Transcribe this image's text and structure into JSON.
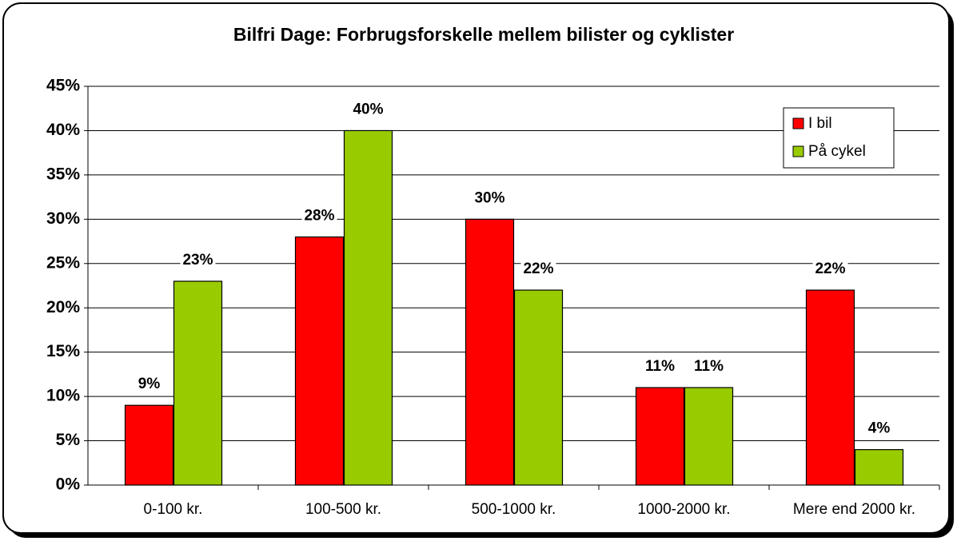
{
  "chart_data": {
    "type": "bar",
    "title": "Bilfri Dage: Forbrugsforskelle mellem bilister og cyklister",
    "categories": [
      "0-100 kr.",
      "100-500 kr.",
      "500-1000 kr.",
      "1000-2000 kr.",
      "Mere end 2000 kr."
    ],
    "series": [
      {
        "name": "I bil",
        "color": "#ff0000",
        "values": [
          9,
          28,
          30,
          11,
          22
        ],
        "value_labels": [
          "9%",
          "28%",
          "30%",
          "11%",
          "22%"
        ]
      },
      {
        "name": "På cykel",
        "color": "#99cc00",
        "values": [
          23,
          40,
          22,
          11,
          4
        ],
        "value_labels": [
          "23%",
          "40%",
          "22%",
          "11%",
          "4%"
        ]
      }
    ],
    "ylim": [
      0,
      45
    ],
    "yticks": [
      {
        "value": 0,
        "label": "0%"
      },
      {
        "value": 5,
        "label": "5%"
      },
      {
        "value": 10,
        "label": "10%"
      },
      {
        "value": 15,
        "label": "15%"
      },
      {
        "value": 20,
        "label": "20%"
      },
      {
        "value": 25,
        "label": "25%"
      },
      {
        "value": 30,
        "label": "30%"
      },
      {
        "value": 35,
        "label": "35%"
      },
      {
        "value": 40,
        "label": "40%"
      },
      {
        "value": 45,
        "label": "45%"
      }
    ],
    "grid": true,
    "legend": "upper right"
  }
}
